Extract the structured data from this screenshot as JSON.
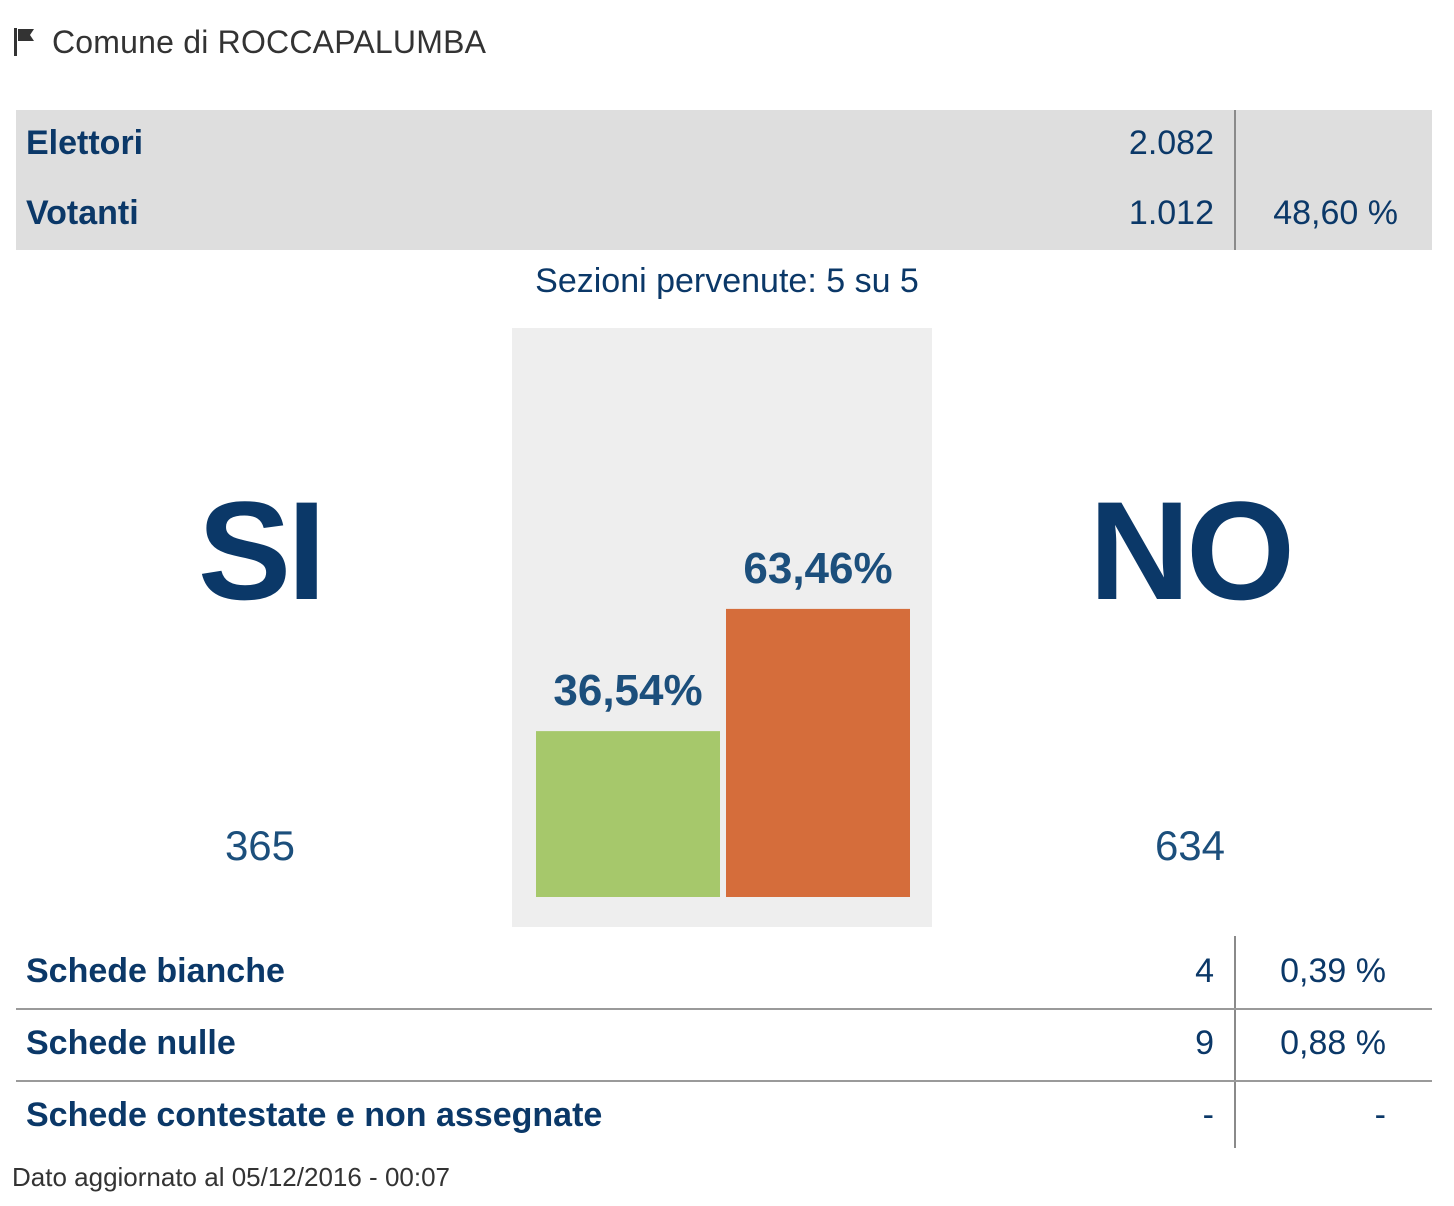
{
  "header": {
    "title": "Comune di ROCCAPALUMBA",
    "icon": "flag-icon"
  },
  "turnout": {
    "rows": [
      {
        "label": "Elettori",
        "value": "2.082",
        "percent": ""
      },
      {
        "label": "Votanti",
        "value": "1.012",
        "percent": "48,60 %"
      }
    ]
  },
  "sezioni": "Sezioni pervenute: 5 su 5",
  "answers": {
    "si": {
      "label": "SI",
      "count": "365"
    },
    "no": {
      "label": "NO",
      "count": "634"
    }
  },
  "colors": {
    "si": "#a6c86b",
    "no": "#d56d3b",
    "text": "#0b3868",
    "panel": "#eeeeee"
  },
  "chart_data": {
    "type": "bar",
    "categories": [
      "SI",
      "NO"
    ],
    "values": [
      36.54,
      63.46
    ],
    "value_labels": [
      "36,54%",
      "63,46%"
    ],
    "ylim": [
      0,
      100
    ]
  },
  "details": {
    "rows": [
      {
        "label": "Schede bianche",
        "value": "4",
        "percent": "0,39 %"
      },
      {
        "label": "Schede nulle",
        "value": "9",
        "percent": "0,88 %"
      },
      {
        "label": "Schede contestate e non assegnate",
        "value": "-",
        "percent": "-"
      }
    ]
  },
  "footer": "Dato aggiornato al 05/12/2016 - 00:07"
}
